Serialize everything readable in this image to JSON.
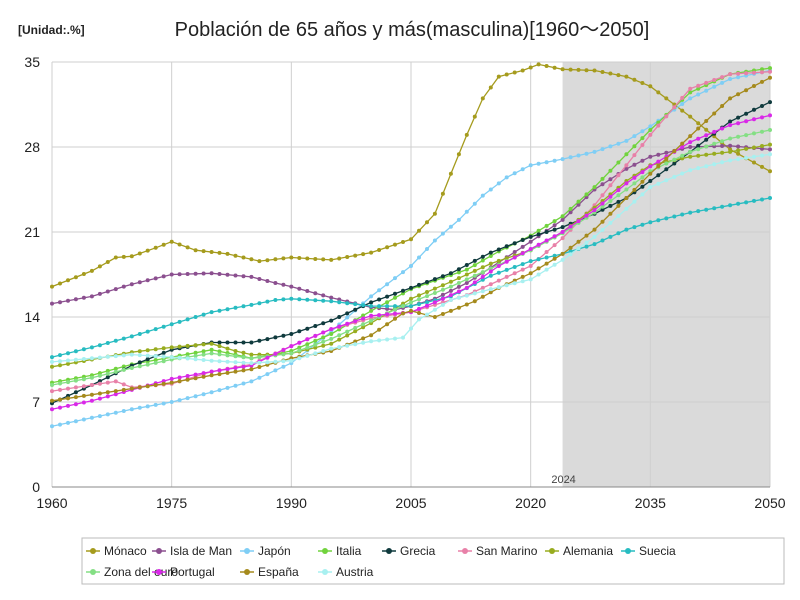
{
  "chart_data": {
    "type": "line",
    "title": "Población de 65 años y más(masculina)[1960～2050]",
    "unit_label": "[Unidad:.%]",
    "projection_label": "2024",
    "projection_start": 2024,
    "xlim": [
      1960,
      2050
    ],
    "ylim": [
      0,
      35
    ],
    "x_ticks": [
      1960,
      1975,
      1990,
      2005,
      2020,
      2035,
      2050
    ],
    "y_ticks": [
      0,
      7,
      14,
      21,
      28,
      35
    ],
    "grid": true,
    "legend_position": "bottom",
    "series": [
      {
        "name": "Mónaco",
        "color": "#a59b1d",
        "points": [
          [
            1960,
            16.5
          ],
          [
            1965,
            17.8
          ],
          [
            1968,
            18.9
          ],
          [
            1970,
            19.0
          ],
          [
            1973,
            19.7
          ],
          [
            1975,
            20.2
          ],
          [
            1978,
            19.5
          ],
          [
            1982,
            19.2
          ],
          [
            1986,
            18.6
          ],
          [
            1990,
            18.9
          ],
          [
            1995,
            18.7
          ],
          [
            2000,
            19.3
          ],
          [
            2005,
            20.4
          ],
          [
            2008,
            22.5
          ],
          [
            2010,
            25.8
          ],
          [
            2012,
            29.0
          ],
          [
            2014,
            32.0
          ],
          [
            2016,
            33.8
          ],
          [
            2019,
            34.3
          ],
          [
            2021,
            34.8
          ],
          [
            2024,
            34.4
          ],
          [
            2028,
            34.3
          ],
          [
            2032,
            33.8
          ],
          [
            2035,
            33.0
          ],
          [
            2040,
            30.5
          ],
          [
            2045,
            27.8
          ],
          [
            2050,
            26.0
          ]
        ]
      },
      {
        "name": "Isla de Man",
        "color": "#8b4f8f",
        "points": [
          [
            1960,
            15.1
          ],
          [
            1965,
            15.7
          ],
          [
            1970,
            16.7
          ],
          [
            1975,
            17.5
          ],
          [
            1980,
            17.6
          ],
          [
            1985,
            17.3
          ],
          [
            1988,
            16.8
          ],
          [
            1990,
            16.5
          ],
          [
            1995,
            15.6
          ],
          [
            2000,
            14.8
          ],
          [
            2003,
            14.6
          ],
          [
            2005,
            14.9
          ],
          [
            2008,
            15.5
          ],
          [
            2012,
            16.8
          ],
          [
            2016,
            18.5
          ],
          [
            2020,
            20.2
          ],
          [
            2024,
            22.0
          ],
          [
            2028,
            24.5
          ],
          [
            2032,
            26.2
          ],
          [
            2035,
            27.2
          ],
          [
            2040,
            28.0
          ],
          [
            2045,
            28.1
          ],
          [
            2050,
            27.8
          ]
        ]
      },
      {
        "name": "Japón",
        "color": "#7fcef5",
        "points": [
          [
            1960,
            5.0
          ],
          [
            1965,
            5.7
          ],
          [
            1970,
            6.4
          ],
          [
            1975,
            7.0
          ],
          [
            1980,
            7.8
          ],
          [
            1985,
            8.7
          ],
          [
            1990,
            10.2
          ],
          [
            1995,
            12.8
          ],
          [
            2000,
            15.7
          ],
          [
            2005,
            18.2
          ],
          [
            2008,
            20.3
          ],
          [
            2011,
            22.0
          ],
          [
            2014,
            24.0
          ],
          [
            2017,
            25.5
          ],
          [
            2020,
            26.5
          ],
          [
            2024,
            27.0
          ],
          [
            2028,
            27.6
          ],
          [
            2032,
            28.5
          ],
          [
            2035,
            29.7
          ],
          [
            2040,
            32.0
          ],
          [
            2045,
            33.6
          ],
          [
            2050,
            34.3
          ]
        ]
      },
      {
        "name": "Italia",
        "color": "#71d33d",
        "points": [
          [
            1960,
            8.6
          ],
          [
            1965,
            9.2
          ],
          [
            1970,
            10.1
          ],
          [
            1975,
            10.7
          ],
          [
            1980,
            11.3
          ],
          [
            1983,
            10.9
          ],
          [
            1985,
            10.6
          ],
          [
            1990,
            11.2
          ],
          [
            1995,
            12.6
          ],
          [
            2000,
            14.5
          ],
          [
            2005,
            16.3
          ],
          [
            2008,
            17.0
          ],
          [
            2012,
            17.9
          ],
          [
            2016,
            19.4
          ],
          [
            2020,
            20.7
          ],
          [
            2024,
            22.3
          ],
          [
            2028,
            24.7
          ],
          [
            2032,
            27.4
          ],
          [
            2035,
            29.4
          ],
          [
            2040,
            32.5
          ],
          [
            2045,
            34.0
          ],
          [
            2050,
            34.5
          ]
        ]
      },
      {
        "name": "Grecia",
        "color": "#0f3a3d",
        "points": [
          [
            1960,
            6.9
          ],
          [
            1965,
            8.4
          ],
          [
            1970,
            10.0
          ],
          [
            1975,
            11.3
          ],
          [
            1980,
            11.9
          ],
          [
            1985,
            11.9
          ],
          [
            1990,
            12.6
          ],
          [
            1995,
            13.7
          ],
          [
            2000,
            15.2
          ],
          [
            2005,
            16.4
          ],
          [
            2010,
            17.6
          ],
          [
            2015,
            19.3
          ],
          [
            2020,
            20.6
          ],
          [
            2024,
            21.4
          ],
          [
            2028,
            22.5
          ],
          [
            2032,
            23.8
          ],
          [
            2035,
            25.2
          ],
          [
            2040,
            27.6
          ],
          [
            2045,
            30.1
          ],
          [
            2050,
            31.7
          ]
        ]
      },
      {
        "name": "San Marino",
        "color": "#e880a8",
        "points": [
          [
            1960,
            7.9
          ],
          [
            1965,
            8.4
          ],
          [
            1968,
            8.7
          ],
          [
            1970,
            8.2
          ],
          [
            1975,
            8.5
          ],
          [
            1980,
            9.5
          ],
          [
            1985,
            10.1
          ],
          [
            1990,
            11.6
          ],
          [
            1995,
            13.0
          ],
          [
            2000,
            13.9
          ],
          [
            2005,
            14.4
          ],
          [
            2008,
            15.0
          ],
          [
            2012,
            15.8
          ],
          [
            2016,
            17.0
          ],
          [
            2020,
            18.2
          ],
          [
            2024,
            20.5
          ],
          [
            2028,
            23.2
          ],
          [
            2032,
            26.5
          ],
          [
            2035,
            29.0
          ],
          [
            2040,
            32.8
          ],
          [
            2045,
            34.0
          ],
          [
            2050,
            34.2
          ]
        ]
      },
      {
        "name": "Alemania",
        "color": "#98ac1f",
        "points": [
          [
            1960,
            9.9
          ],
          [
            1965,
            10.5
          ],
          [
            1970,
            11.1
          ],
          [
            1975,
            11.5
          ],
          [
            1980,
            11.8
          ],
          [
            1983,
            11.2
          ],
          [
            1985,
            10.9
          ],
          [
            1988,
            10.9
          ],
          [
            1990,
            11.0
          ],
          [
            1995,
            11.8
          ],
          [
            2000,
            13.5
          ],
          [
            2005,
            15.5
          ],
          [
            2010,
            16.9
          ],
          [
            2015,
            18.4
          ],
          [
            2020,
            19.5
          ],
          [
            2024,
            21.0
          ],
          [
            2028,
            23.0
          ],
          [
            2032,
            25.2
          ],
          [
            2035,
            26.5
          ],
          [
            2040,
            27.2
          ],
          [
            2045,
            27.6
          ],
          [
            2050,
            28.2
          ]
        ]
      },
      {
        "name": "Suecia",
        "color": "#27bcc1",
        "points": [
          [
            1960,
            10.7
          ],
          [
            1965,
            11.5
          ],
          [
            1970,
            12.4
          ],
          [
            1975,
            13.4
          ],
          [
            1980,
            14.4
          ],
          [
            1985,
            15.0
          ],
          [
            1988,
            15.4
          ],
          [
            1990,
            15.5
          ],
          [
            1995,
            15.3
          ],
          [
            2000,
            14.9
          ],
          [
            2005,
            14.9
          ],
          [
            2010,
            15.7
          ],
          [
            2015,
            17.4
          ],
          [
            2020,
            18.6
          ],
          [
            2024,
            19.2
          ],
          [
            2028,
            20.0
          ],
          [
            2032,
            21.2
          ],
          [
            2035,
            21.8
          ],
          [
            2040,
            22.6
          ],
          [
            2045,
            23.2
          ],
          [
            2050,
            23.8
          ]
        ]
      },
      {
        "name": "Zona del euro",
        "color": "#84df84",
        "points": [
          [
            1960,
            8.4
          ],
          [
            1965,
            9.0
          ],
          [
            1970,
            9.8
          ],
          [
            1975,
            10.5
          ],
          [
            1980,
            11.0
          ],
          [
            1985,
            10.6
          ],
          [
            1990,
            11.0
          ],
          [
            1995,
            12.2
          ],
          [
            2000,
            13.7
          ],
          [
            2005,
            15.2
          ],
          [
            2010,
            16.5
          ],
          [
            2015,
            18.0
          ],
          [
            2020,
            19.5
          ],
          [
            2024,
            20.9
          ],
          [
            2028,
            22.6
          ],
          [
            2032,
            24.5
          ],
          [
            2035,
            26.0
          ],
          [
            2040,
            27.6
          ],
          [
            2045,
            28.7
          ],
          [
            2050,
            29.4
          ]
        ]
      },
      {
        "name": "Portugal",
        "color": "#d928e8",
        "points": [
          [
            1960,
            6.4
          ],
          [
            1965,
            7.1
          ],
          [
            1970,
            8.0
          ],
          [
            1975,
            8.9
          ],
          [
            1980,
            9.5
          ],
          [
            1985,
            10.0
          ],
          [
            1990,
            11.6
          ],
          [
            1995,
            13.0
          ],
          [
            2000,
            14.1
          ],
          [
            2005,
            14.4
          ],
          [
            2008,
            15.2
          ],
          [
            2012,
            16.4
          ],
          [
            2016,
            18.2
          ],
          [
            2020,
            19.6
          ],
          [
            2024,
            21.0
          ],
          [
            2028,
            22.8
          ],
          [
            2032,
            25.0
          ],
          [
            2035,
            26.4
          ],
          [
            2040,
            28.4
          ],
          [
            2045,
            29.8
          ],
          [
            2050,
            30.6
          ]
        ]
      },
      {
        "name": "España",
        "color": "#a58a1c",
        "points": [
          [
            1960,
            7.1
          ],
          [
            1965,
            7.6
          ],
          [
            1970,
            8.1
          ],
          [
            1975,
            8.6
          ],
          [
            1980,
            9.2
          ],
          [
            1985,
            9.7
          ],
          [
            1990,
            10.6
          ],
          [
            1995,
            11.2
          ],
          [
            2000,
            12.5
          ],
          [
            2004,
            14.3
          ],
          [
            2005,
            14.5
          ],
          [
            2008,
            14.0
          ],
          [
            2010,
            14.5
          ],
          [
            2013,
            15.3
          ],
          [
            2016,
            16.4
          ],
          [
            2020,
            17.6
          ],
          [
            2024,
            19.2
          ],
          [
            2028,
            21.2
          ],
          [
            2032,
            23.8
          ],
          [
            2035,
            25.8
          ],
          [
            2040,
            28.9
          ],
          [
            2045,
            32.0
          ],
          [
            2050,
            33.7
          ]
        ]
      },
      {
        "name": "Austria",
        "color": "#a8f0f0",
        "points": [
          [
            1960,
            10.3
          ],
          [
            1965,
            10.6
          ],
          [
            1970,
            10.9
          ],
          [
            1975,
            10.7
          ],
          [
            1980,
            10.4
          ],
          [
            1985,
            10.2
          ],
          [
            1990,
            10.4
          ],
          [
            1995,
            11.4
          ],
          [
            2000,
            12.0
          ],
          [
            2004,
            12.3
          ],
          [
            2006,
            13.8
          ],
          [
            2010,
            15.4
          ],
          [
            2015,
            16.3
          ],
          [
            2020,
            17.1
          ],
          [
            2024,
            18.7
          ],
          [
            2028,
            20.6
          ],
          [
            2032,
            22.9
          ],
          [
            2035,
            24.7
          ],
          [
            2040,
            26.1
          ],
          [
            2045,
            26.9
          ],
          [
            2050,
            27.4
          ]
        ]
      }
    ]
  }
}
